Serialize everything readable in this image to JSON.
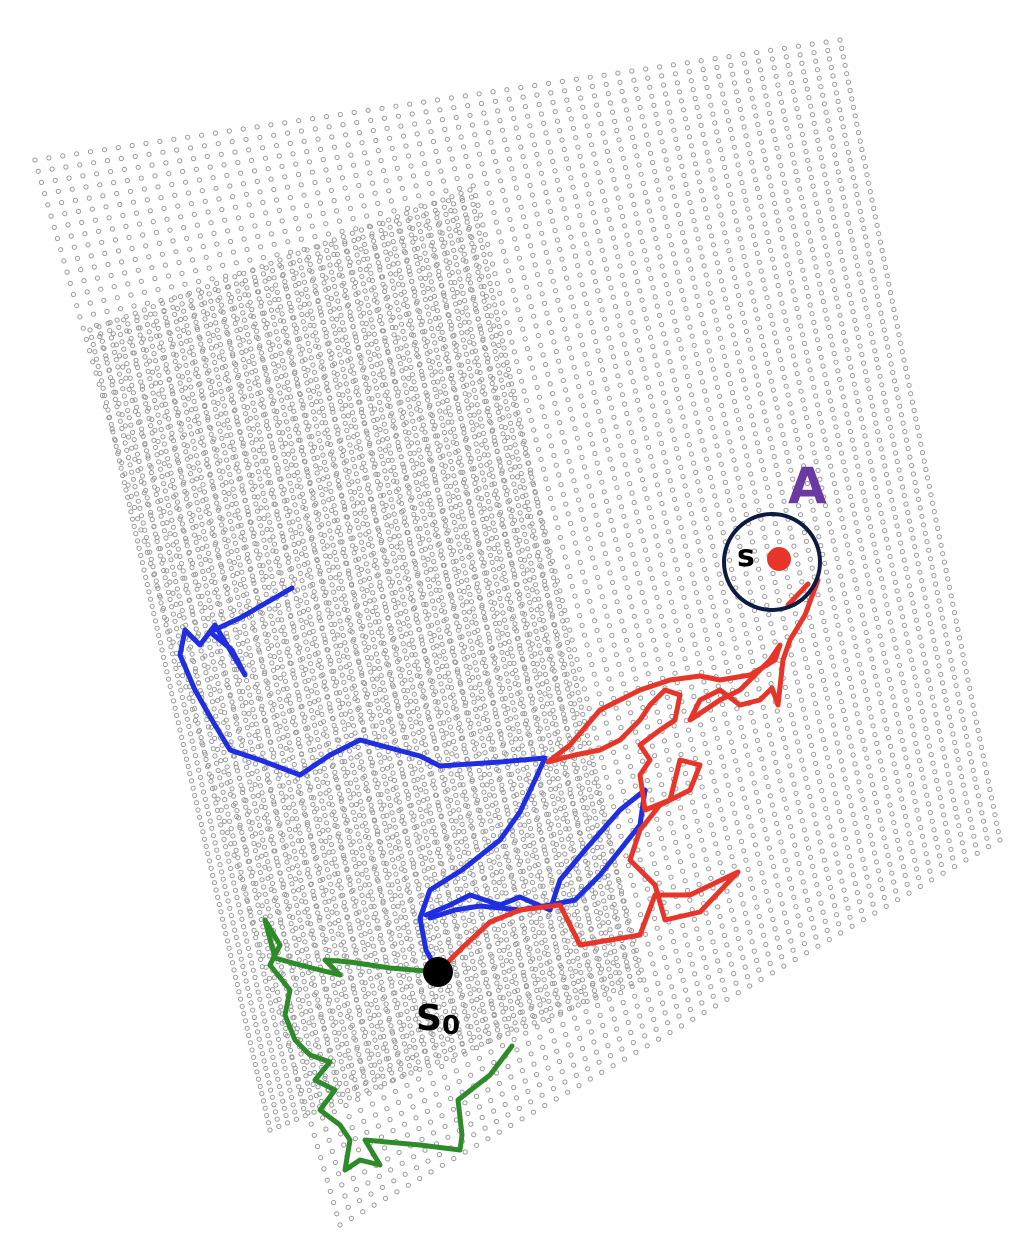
{
  "labels": {
    "region": "A",
    "target": "s",
    "start_main": "S",
    "start_sub": "0"
  },
  "colors": {
    "point_cloud": "#9a9a9a",
    "path_red": "#e8352a",
    "path_blue": "#1f2ee0",
    "path_green": "#2e8b2a",
    "region_label": "#6a3aa0",
    "circle": "#0c1a44",
    "start_point": "#000000",
    "target_point": "#e8352a"
  },
  "icons": {
    "start": "filled-circle",
    "target": "filled-circle",
    "region": "ring"
  }
}
